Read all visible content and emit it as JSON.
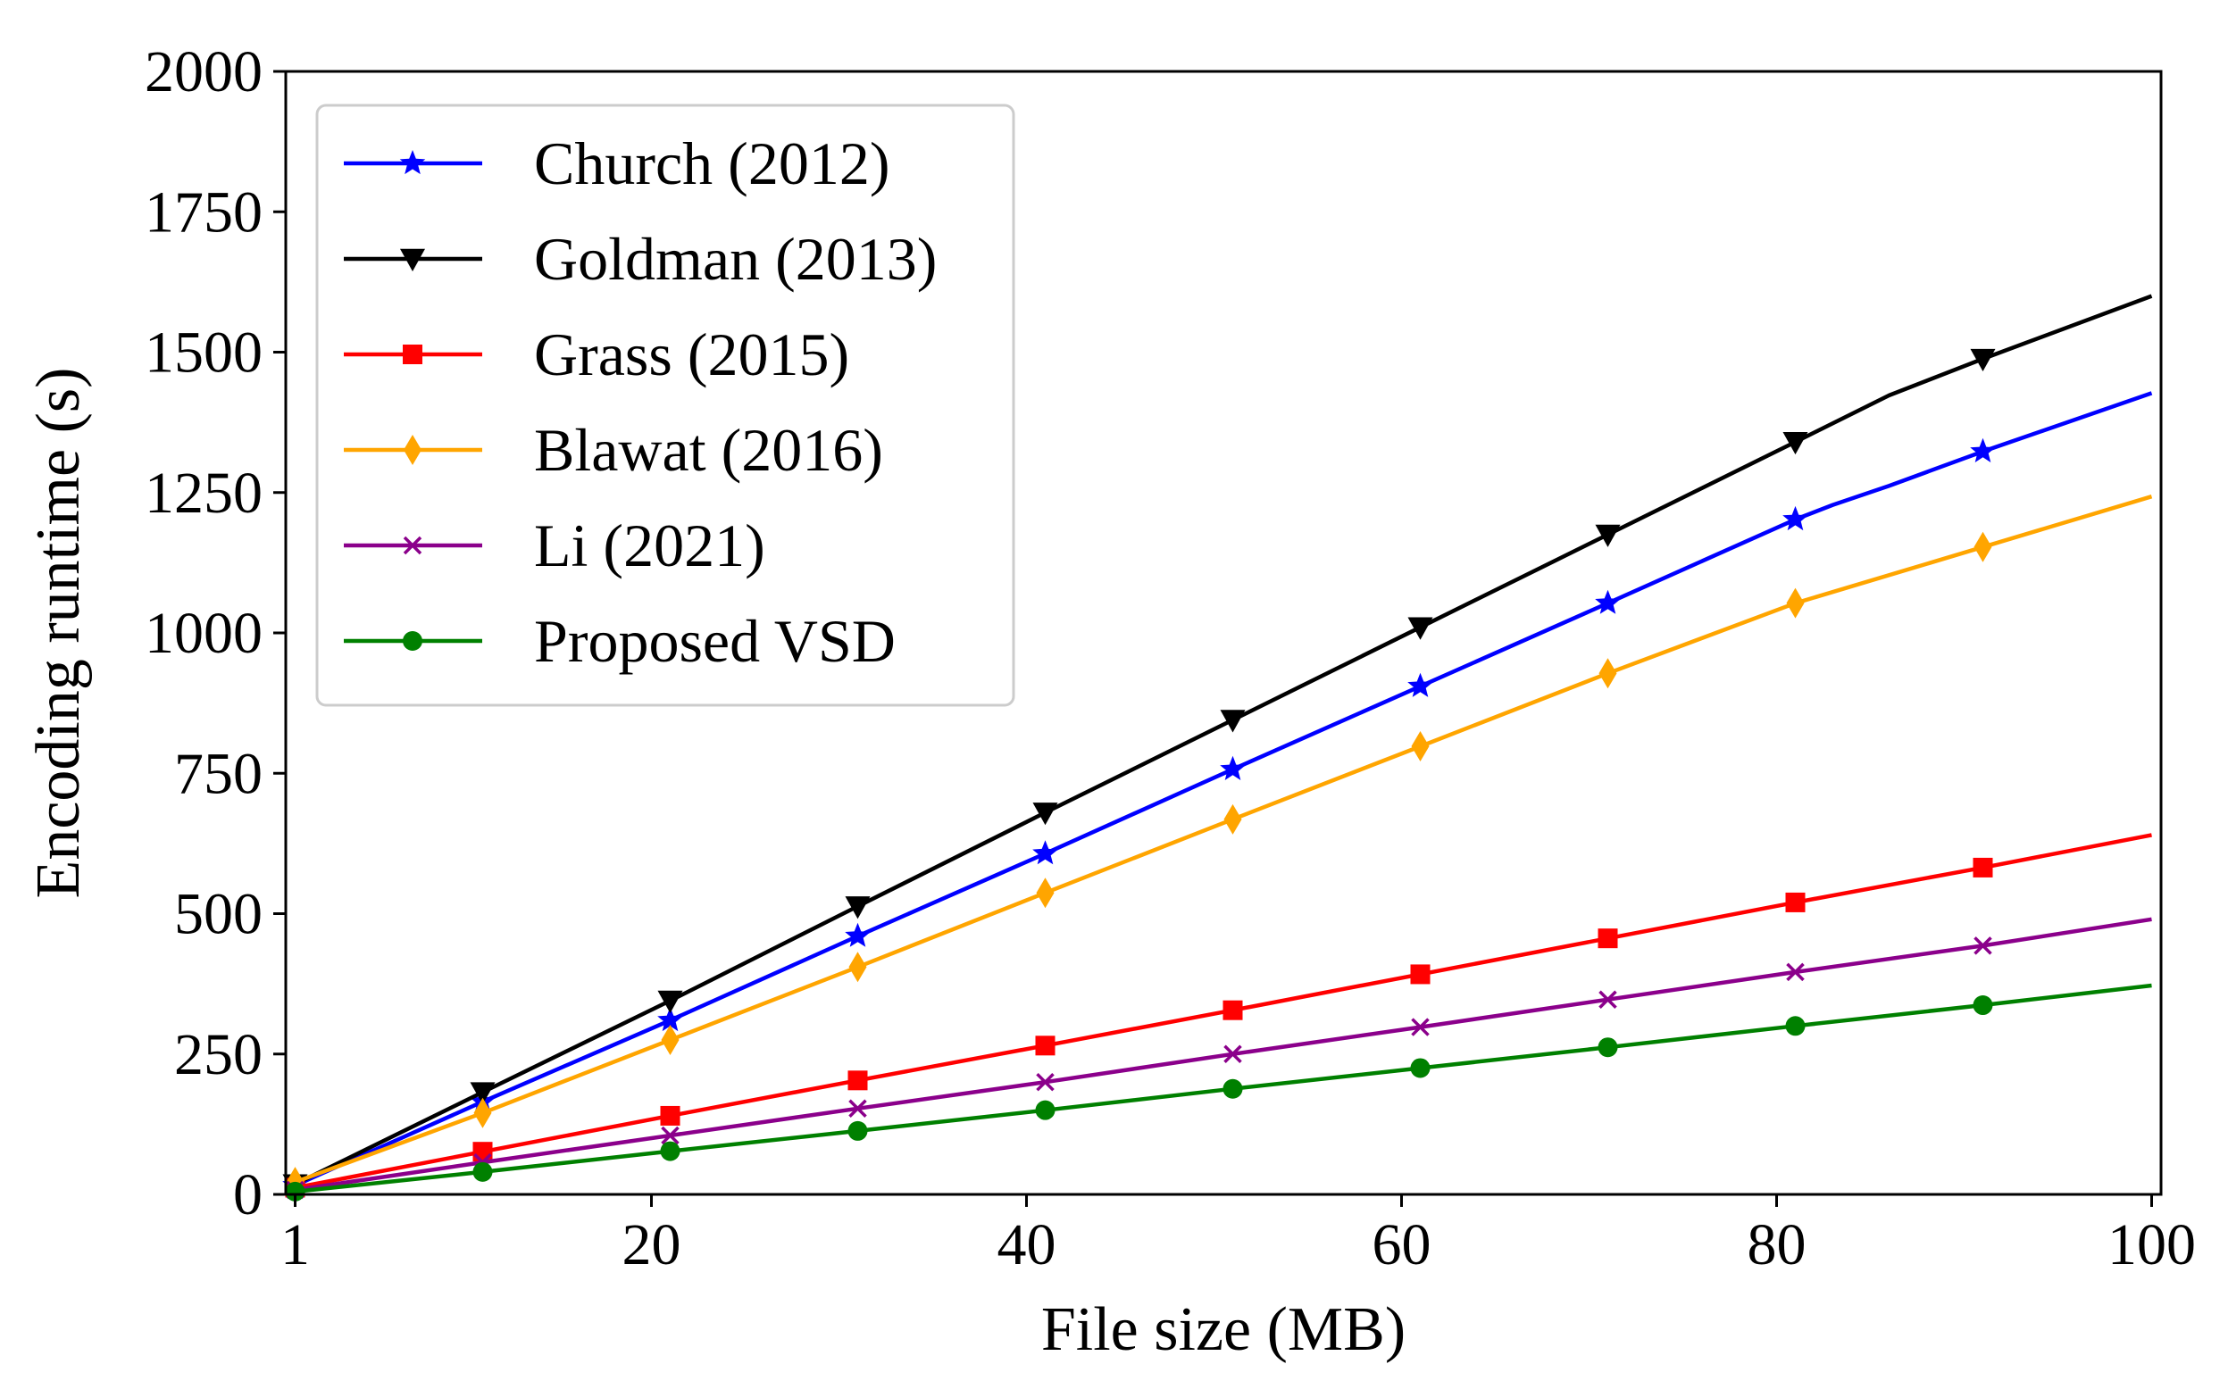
{
  "chart_data": {
    "type": "line",
    "title": "",
    "xlabel": "File size (MB)",
    "ylabel": "Encoding runtime (s)",
    "xlim": [
      0.5,
      100.5
    ],
    "ylim": [
      0,
      2000
    ],
    "xticks": [
      1,
      20,
      40,
      60,
      80,
      100
    ],
    "yticks": [
      0,
      250,
      500,
      750,
      1000,
      1250,
      1500,
      1750,
      2000
    ],
    "x_tick_labels": [
      "1",
      "20",
      "40",
      "60",
      "80",
      "100"
    ],
    "y_tick_labels": [
      "0",
      "250",
      "500",
      "750",
      "1000",
      "1250",
      "1500",
      "1750",
      "2000"
    ],
    "grid": false,
    "legend_position": "top-left",
    "x": [
      1,
      11,
      21,
      31,
      41,
      51,
      61,
      71,
      81,
      91
    ],
    "series": [
      {
        "name": "Church (2012)",
        "color": "#0000ff",
        "marker": "star",
        "values": [
          16,
          165,
          310,
          460,
          607,
          757,
          905,
          1053,
          1202,
          1323
        ],
        "line_x": [
          1,
          11,
          21,
          31,
          41,
          51,
          61,
          71,
          81,
          83,
          86,
          91,
          100
        ],
        "line_values": [
          16,
          165,
          310,
          460,
          607,
          757,
          905,
          1053,
          1202,
          1228,
          1262,
          1323,
          1427
        ]
      },
      {
        "name": "Goldman (2013)",
        "color": "#000000",
        "marker": "triangle-down",
        "values": [
          18,
          182,
          345,
          513,
          680,
          845,
          1010,
          1175,
          1340,
          1488
        ],
        "line_x": [
          1,
          11,
          21,
          31,
          41,
          51,
          61,
          71,
          81,
          86,
          91,
          100
        ],
        "line_values": [
          18,
          182,
          345,
          513,
          680,
          845,
          1010,
          1175,
          1340,
          1423,
          1488,
          1600
        ]
      },
      {
        "name": "Grass (2015)",
        "color": "#ff0000",
        "marker": "square",
        "values": [
          12,
          76,
          140,
          203,
          265,
          328,
          392,
          456,
          520,
          582
        ],
        "line_x": [
          1,
          11,
          21,
          31,
          41,
          51,
          61,
          71,
          81,
          91,
          100
        ],
        "line_values": [
          12,
          76,
          140,
          203,
          265,
          328,
          392,
          456,
          520,
          582,
          640
        ]
      },
      {
        "name": "Blawat (2016)",
        "color": "#ffa500",
        "marker": "thin-diamond",
        "values": [
          22,
          145,
          275,
          405,
          537,
          668,
          798,
          928,
          1053,
          1153
        ],
        "line_x": [
          1,
          11,
          21,
          31,
          41,
          51,
          61,
          71,
          81,
          91,
          100
        ],
        "line_values": [
          22,
          145,
          275,
          405,
          537,
          668,
          798,
          928,
          1053,
          1153,
          1243
        ]
      },
      {
        "name": "Li (2021)",
        "color": "#8b008b",
        "marker": "x",
        "values": [
          8,
          57,
          105,
          153,
          200,
          250,
          298,
          347,
          396,
          443
        ],
        "line_x": [
          1,
          11,
          21,
          31,
          41,
          51,
          61,
          71,
          81,
          91,
          100
        ],
        "line_values": [
          8,
          57,
          105,
          153,
          200,
          250,
          298,
          347,
          396,
          443,
          490
        ]
      },
      {
        "name": "Proposed VSD",
        "color": "#008000",
        "marker": "circle",
        "values": [
          5,
          40,
          77,
          113,
          150,
          188,
          225,
          262,
          300,
          337
        ],
        "line_x": [
          1,
          11,
          21,
          31,
          41,
          51,
          61,
          71,
          81,
          91,
          100
        ],
        "line_values": [
          5,
          40,
          77,
          113,
          150,
          188,
          225,
          262,
          300,
          337,
          372
        ]
      }
    ]
  }
}
